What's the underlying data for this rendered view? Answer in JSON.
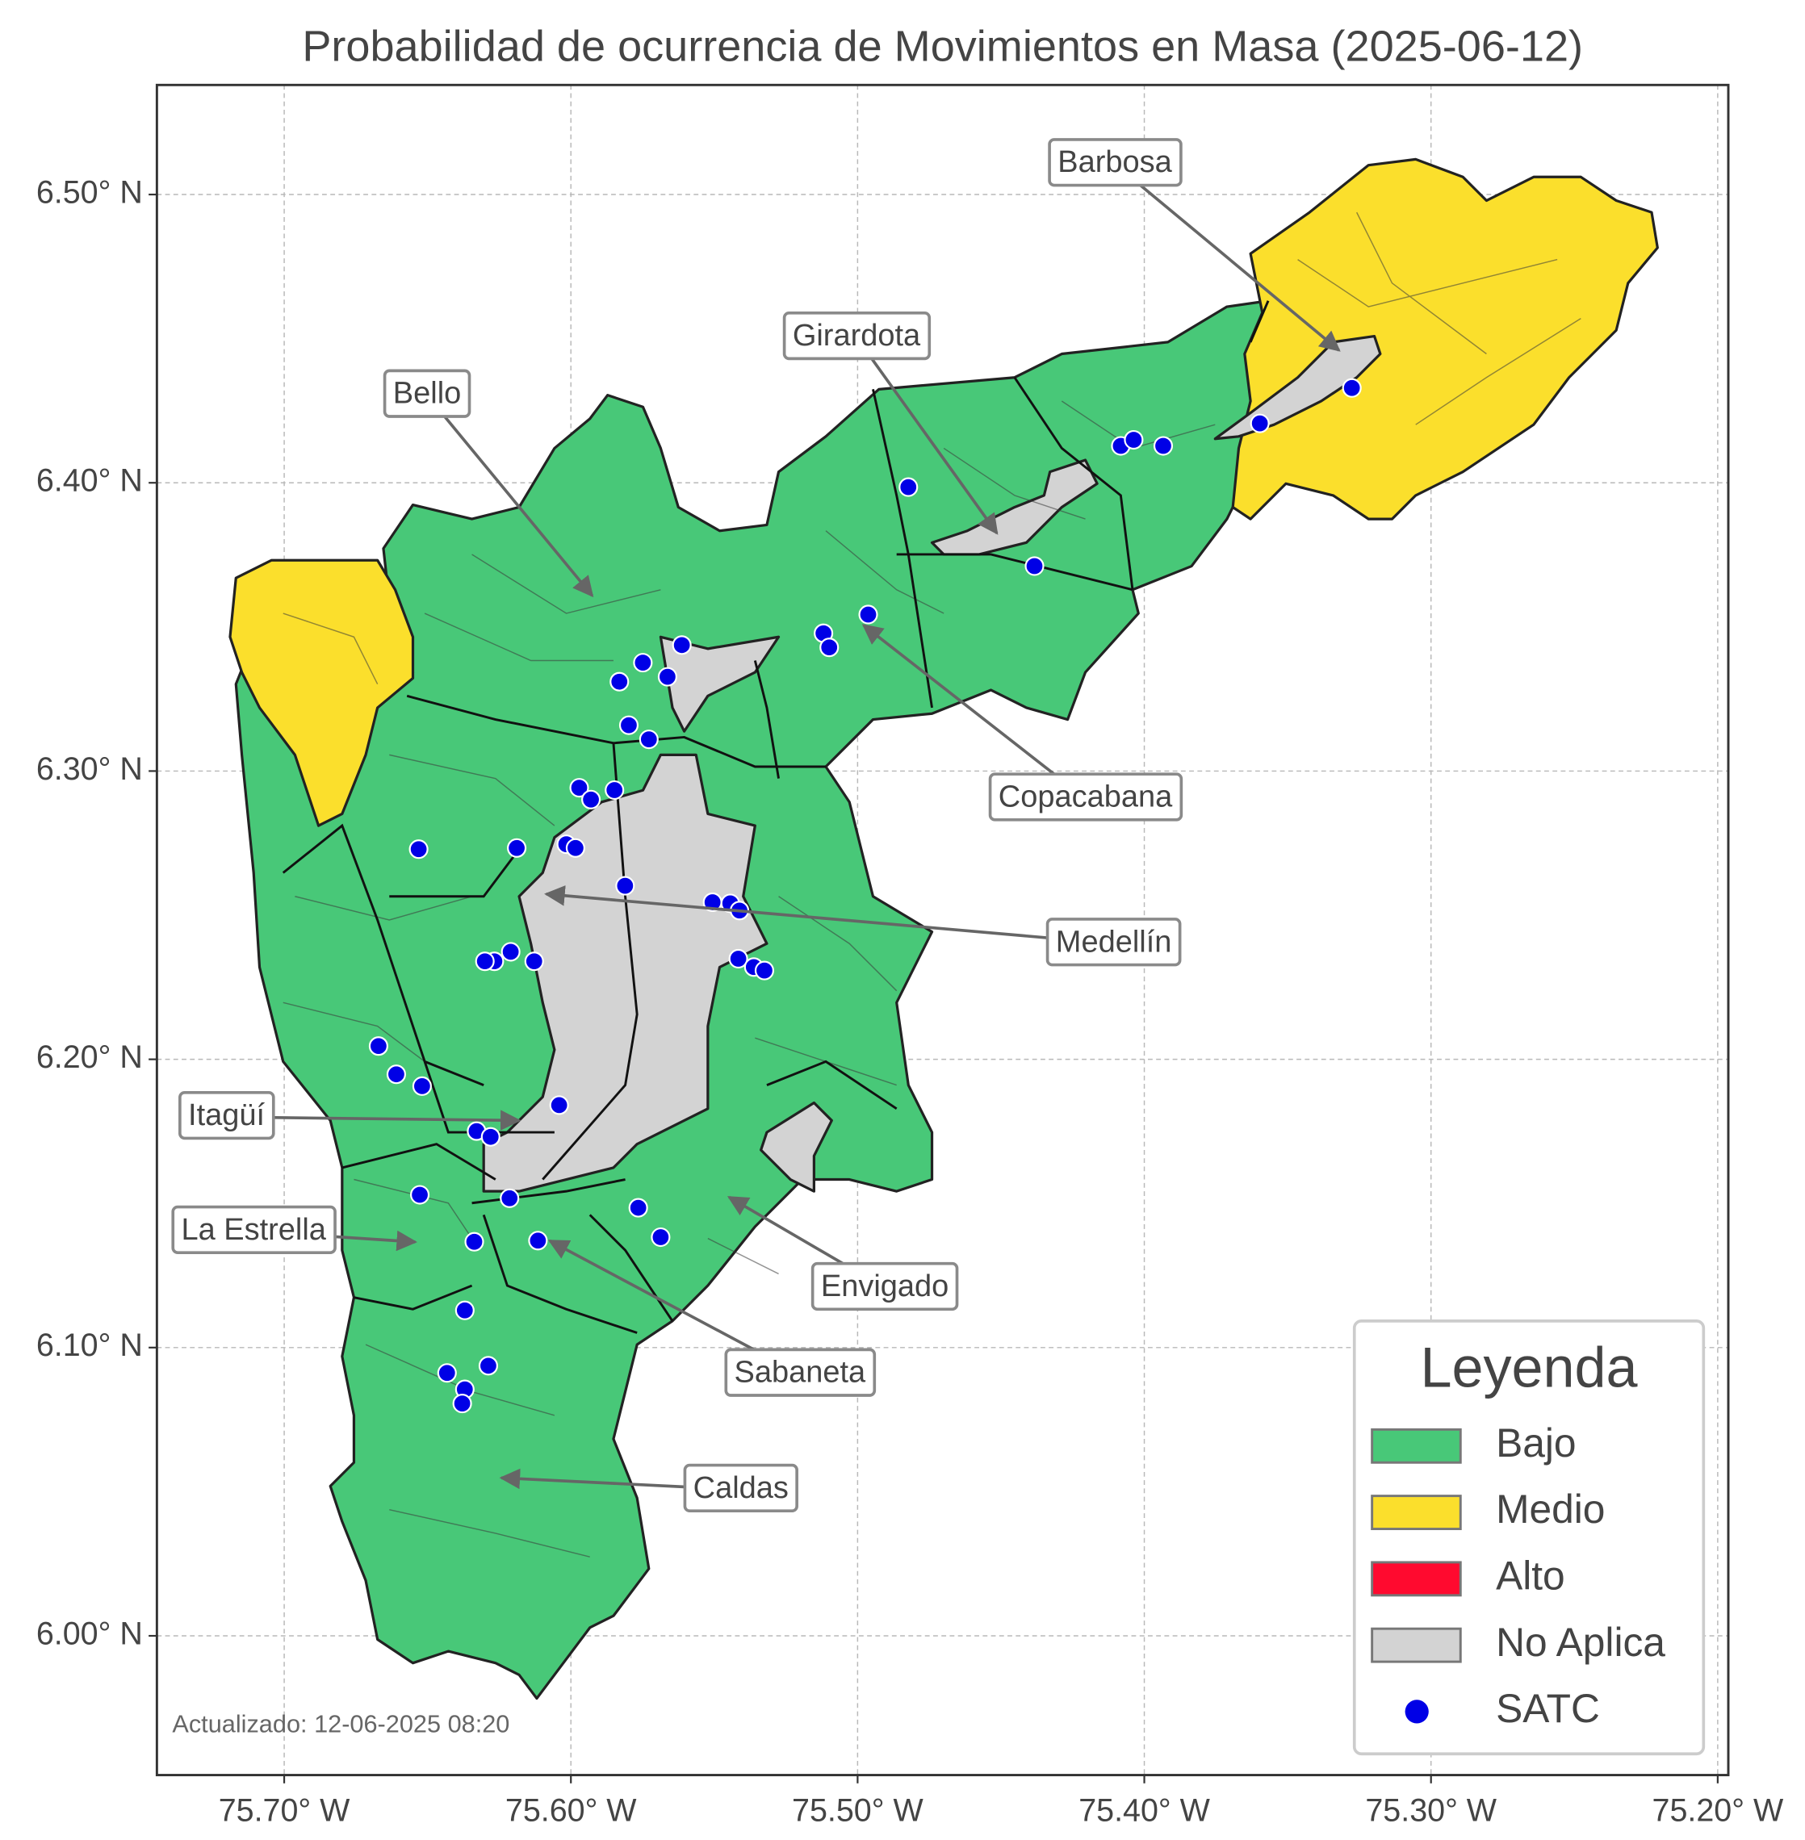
{
  "chart_data": {
    "type": "map",
    "title": "Probabilidad de ocurrencia de Movimientos en Masa (2025-06-12)",
    "xlim": [
      -75.7444,
      -75.1963
    ],
    "ylim": [
      5.9517,
      6.538
    ],
    "xticks": [
      {
        "value": -75.7,
        "label": "75.70° W"
      },
      {
        "value": -75.6,
        "label": "75.60° W"
      },
      {
        "value": -75.5,
        "label": "75.50° W"
      },
      {
        "value": -75.4,
        "label": "75.40° W"
      },
      {
        "value": -75.3,
        "label": "75.30° W"
      },
      {
        "value": -75.2,
        "label": "75.20° W"
      }
    ],
    "yticks": [
      {
        "value": 6.0,
        "label": "6.00° N"
      },
      {
        "value": 6.1,
        "label": "6.10° N"
      },
      {
        "value": 6.2,
        "label": "6.20° N"
      },
      {
        "value": 6.3,
        "label": "6.30° N"
      },
      {
        "value": 6.4,
        "label": "6.40° N"
      },
      {
        "value": 6.5,
        "label": "6.50° N"
      }
    ],
    "grid": true,
    "legend": {
      "title": "Leyenda",
      "position": "lower right",
      "entries": [
        {
          "name": "Bajo",
          "color": "#48c878",
          "kind": "patch"
        },
        {
          "name": "Medio",
          "color": "#fbdf2c",
          "kind": "patch"
        },
        {
          "name": "Alto",
          "color": "#ff0a2f",
          "kind": "patch"
        },
        {
          "name": "No Aplica",
          "color": "#d3d3d3",
          "kind": "patch"
        },
        {
          "name": "SATC",
          "color": "#0000e6",
          "kind": "marker"
        }
      ]
    },
    "points": {
      "lon": [
        -75.3276,
        -75.3597,
        -75.4082,
        -75.4037,
        -75.3934,
        -75.4823,
        -75.4383,
        -75.4963,
        -75.5119,
        -75.5099,
        -75.5613,
        -75.5749,
        -75.5831,
        -75.5663,
        -75.5798,
        -75.5728,
        -75.5971,
        -75.593,
        -75.5848,
        -75.6531,
        -75.6189,
        -75.6016,
        -75.5984,
        -75.5811,
        -75.5506,
        -75.5444,
        -75.5412,
        -75.5416,
        -75.5362,
        -75.5325,
        -75.621,
        -75.6267,
        -75.63,
        -75.6128,
        -75.6671,
        -75.6609,
        -75.6519,
        -75.6041,
        -75.6329,
        -75.628,
        -75.6527,
        -75.6214,
        -75.5765,
        -75.5687,
        -75.6337,
        -75.6115,
        -75.637,
        -75.6432,
        -75.6288,
        -75.637,
        -75.6379
      ],
      "lat": [
        6.4329,
        6.4206,
        6.4128,
        6.4149,
        6.4128,
        6.3985,
        6.3711,
        6.3543,
        6.3478,
        6.3429,
        6.3437,
        6.3376,
        6.331,
        6.3327,
        6.3159,
        6.311,
        6.2942,
        6.2901,
        6.2934,
        6.2729,
        6.2733,
        6.2746,
        6.2733,
        6.2602,
        6.2545,
        6.2541,
        6.2516,
        6.2349,
        6.232,
        6.2308,
        6.2373,
        6.234,
        6.234,
        6.234,
        6.2046,
        6.1948,
        6.1907,
        6.1841,
        6.1751,
        6.1731,
        6.153,
        6.1518,
        6.1485,
        6.1383,
        6.1367,
        6.1371,
        6.1129,
        6.0912,
        6.0937,
        6.0855,
        6.0806
      ]
    },
    "place_labels": [
      "Barbosa",
      "Girardota",
      "Bello",
      "Copacabana",
      "Medellín",
      "Itagüí",
      "La Estrella",
      "Envigado",
      "Sabaneta",
      "Caldas"
    ],
    "footnote": "Actualizado: 12-06-2025 08:20"
  }
}
